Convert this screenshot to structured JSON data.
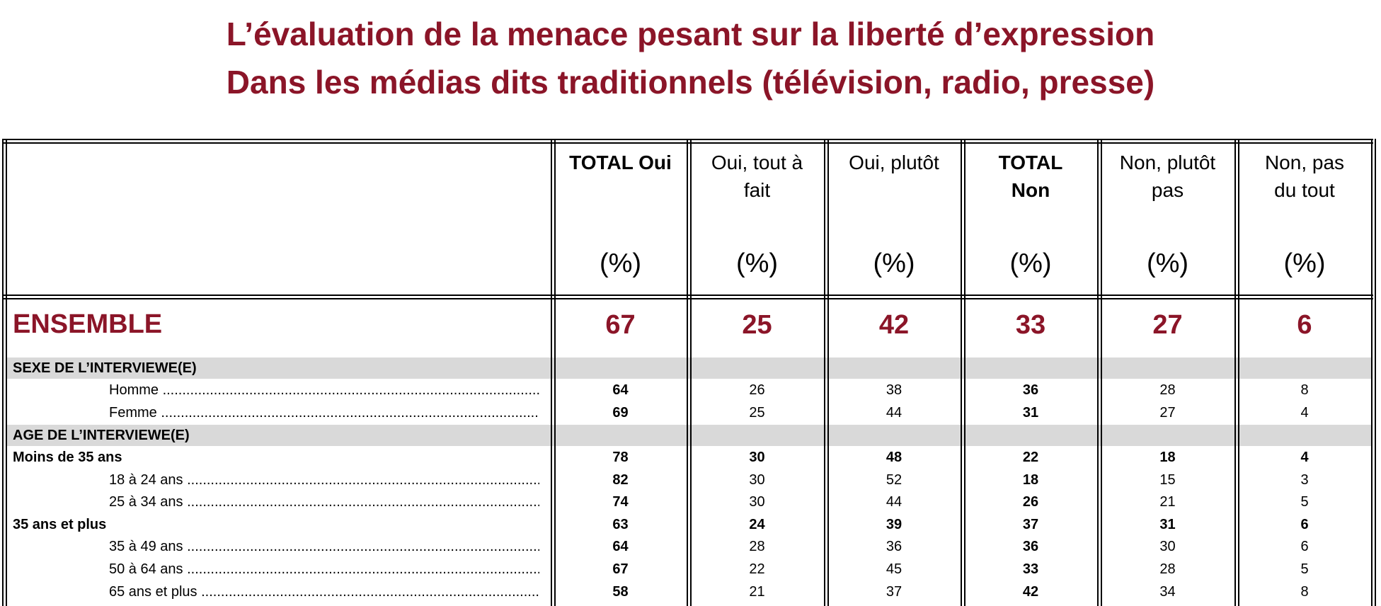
{
  "title": {
    "line1": "L’évaluation de la menace pesant sur la liberté d’expression",
    "line2": "Dans les médias dits traditionnels (télévision, radio, presse)"
  },
  "columns": [
    {
      "label": "TOTAL Oui",
      "unit": "(%)",
      "bold": true
    },
    {
      "label": "Oui, tout à fait",
      "unit": "(%)",
      "bold": false
    },
    {
      "label": "Oui, plutôt",
      "unit": "(%)",
      "bold": false
    },
    {
      "label": "TOTAL Non",
      "unit": "(%)",
      "bold": true
    },
    {
      "label": "Non, plutôt pas",
      "unit": "(%)",
      "bold": false
    },
    {
      "label": "Non, pas du tout",
      "unit": "(%)",
      "bold": false
    }
  ],
  "ensemble": {
    "label": "ENSEMBLE",
    "values": [
      "67",
      "25",
      "42",
      "33",
      "27",
      "6"
    ]
  },
  "sections": [
    {
      "label": "SEXE DE L’INTERVIEWE(E)",
      "rows": [
        {
          "label": "Homme",
          "group": false,
          "values": [
            "64",
            "26",
            "38",
            "36",
            "28",
            "8"
          ]
        },
        {
          "label": "Femme",
          "group": false,
          "values": [
            "69",
            "25",
            "44",
            "31",
            "27",
            "4"
          ]
        }
      ]
    },
    {
      "label": "AGE DE L’INTERVIEWE(E)",
      "rows": [
        {
          "label": "Moins de 35 ans",
          "group": true,
          "values": [
            "78",
            "30",
            "48",
            "22",
            "18",
            "4"
          ]
        },
        {
          "label": "18 à 24 ans",
          "group": false,
          "values": [
            "82",
            "30",
            "52",
            "18",
            "15",
            "3"
          ]
        },
        {
          "label": "25 à 34 ans",
          "group": false,
          "values": [
            "74",
            "30",
            "44",
            "26",
            "21",
            "5"
          ]
        },
        {
          "label": "35 ans et plus",
          "group": true,
          "values": [
            "63",
            "24",
            "39",
            "37",
            "31",
            "6"
          ]
        },
        {
          "label": "35 à 49 ans",
          "group": false,
          "values": [
            "64",
            "28",
            "36",
            "36",
            "30",
            "6"
          ]
        },
        {
          "label": "50 à 64 ans",
          "group": false,
          "values": [
            "67",
            "22",
            "45",
            "33",
            "28",
            "5"
          ]
        },
        {
          "label": "65 ans et plus",
          "group": false,
          "values": [
            "58",
            "21",
            "37",
            "42",
            "34",
            "8"
          ]
        }
      ]
    }
  ]
}
